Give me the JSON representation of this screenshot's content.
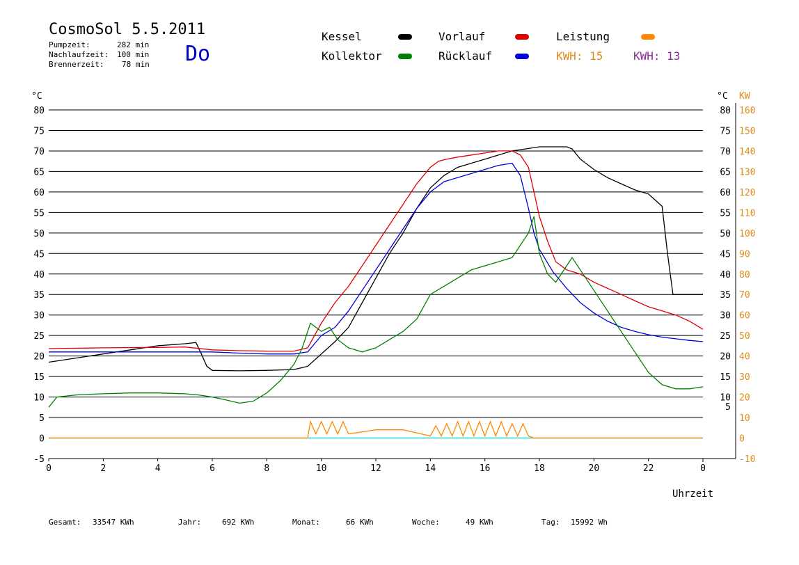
{
  "header": {
    "title": "CosmoSol 5.5.2011",
    "day": "Do",
    "info": [
      {
        "label": "Pumpzeit:",
        "value": "282 min"
      },
      {
        "label": "Nachlaufzeit:",
        "value": "100 min"
      },
      {
        "label": "Brennerzeit:",
        "value": "78 min"
      }
    ]
  },
  "legend": {
    "items": [
      {
        "label": "Kessel",
        "color": "#000000"
      },
      {
        "label": "Vorlauf",
        "color": "#e00000"
      },
      {
        "label": "Leistung",
        "color": "#ff8800"
      },
      {
        "label": "Kollektor",
        "color": "#008000"
      },
      {
        "label": "Rücklauf",
        "color": "#0000dd"
      }
    ],
    "kwh": [
      {
        "label": "KWH:",
        "value": "15",
        "color": "#e08a1a"
      },
      {
        "label": "KWH:",
        "value": "13",
        "color": "#8a2a9a"
      }
    ]
  },
  "footer": {
    "items": [
      {
        "label": "Gesamt:",
        "value": "33547 KWh"
      },
      {
        "label": "Jahr:",
        "value": "692 KWh"
      },
      {
        "label": "Monat:",
        "value": "66 KWh"
      },
      {
        "label": "Woche:",
        "value": "49 KWh"
      },
      {
        "label": "Tag:",
        "value": "15992 Wh"
      }
    ]
  },
  "chart_data": {
    "type": "line",
    "xlabel": "Uhrzeit",
    "ylabel_left": "°C",
    "ylabel_right": "°C",
    "ylabel_right2": "KW",
    "xlim": [
      0,
      24
    ],
    "ylim": [
      -5,
      80
    ],
    "xticks": [
      "0",
      "2",
      "4",
      "6",
      "8",
      "10",
      "12",
      "14",
      "16",
      "18",
      "20",
      "22",
      "0"
    ],
    "yticks_left": [
      "-5",
      "0",
      "5",
      "10",
      "15",
      "20",
      "25",
      "30",
      "35",
      "40",
      "45",
      "50",
      "55",
      "60",
      "65",
      "70",
      "75",
      "80"
    ],
    "yticks_right": [
      "5",
      "10",
      "15",
      "20",
      "25",
      "30",
      "35",
      "40",
      "45",
      "50",
      "55",
      "60",
      "65",
      "70",
      "75",
      "80"
    ],
    "yticks_kw": [
      "-10",
      "0",
      "10",
      "20",
      "30",
      "40",
      "50",
      "60",
      "70",
      "80",
      "90",
      "100",
      "110",
      "120",
      "130",
      "140",
      "150",
      "160"
    ],
    "grid": true,
    "series": [
      {
        "name": "Kessel",
        "color": "#000000",
        "x": [
          0,
          1,
          2,
          3,
          4,
          5,
          5.4,
          5.6,
          5.8,
          6,
          7,
          8,
          9,
          9.5,
          10,
          10.5,
          11,
          11.5,
          12,
          12.5,
          13,
          13.5,
          14,
          14.5,
          15,
          15.5,
          16,
          16.5,
          17,
          17.5,
          18,
          18.5,
          19,
          19.2,
          19.5,
          20,
          20.5,
          21,
          21.5,
          22,
          22.5,
          22.7,
          22.9,
          23.5,
          24
        ],
        "y": [
          18.5,
          19.5,
          20.5,
          21.5,
          22.5,
          23,
          23.3,
          20.5,
          17.5,
          16.5,
          16.4,
          16.5,
          16.7,
          17.5,
          20.5,
          23.5,
          27,
          33,
          39,
          45,
          50,
          56,
          61,
          64,
          66,
          67,
          68,
          69,
          70,
          70.5,
          71,
          71,
          71,
          70.5,
          68,
          65.5,
          63.5,
          62,
          60.5,
          59.5,
          56.5,
          45,
          35,
          35,
          35
        ]
      },
      {
        "name": "Vorlauf",
        "color": "#e00000",
        "x": [
          0,
          2,
          4,
          5,
          6,
          7,
          8,
          9,
          9.5,
          10,
          10.5,
          11,
          11.5,
          12,
          12.5,
          13,
          13.5,
          14,
          14.3,
          14.6,
          15,
          15.5,
          16,
          16.5,
          17,
          17.3,
          17.6,
          17.8,
          18,
          18.3,
          18.6,
          19,
          19.5,
          20,
          20.5,
          21,
          21.5,
          22,
          22.5,
          23,
          23.5,
          24
        ],
        "y": [
          21.8,
          22,
          22.1,
          22.2,
          21.5,
          21.3,
          21.2,
          21.2,
          22,
          28,
          33,
          37,
          42,
          47,
          52,
          57,
          62,
          66,
          67.5,
          68,
          68.5,
          69,
          69.5,
          70,
          70,
          69,
          66,
          60,
          54,
          48,
          43,
          41,
          40,
          38,
          36.5,
          35,
          33.5,
          32,
          31,
          30,
          28.5,
          26.5
        ]
      },
      {
        "name": "Rücklauf",
        "color": "#0000dd",
        "x": [
          0,
          2,
          4,
          6,
          7,
          8,
          9,
          9.5,
          10,
          10.5,
          11,
          11.5,
          12,
          12.5,
          13,
          13.5,
          14,
          14.5,
          15,
          15.5,
          16,
          16.5,
          17,
          17.3,
          17.6,
          17.8,
          18,
          18.5,
          19,
          19.5,
          20,
          20.5,
          21,
          21.5,
          22,
          22.5,
          23,
          23.5,
          24
        ],
        "y": [
          21,
          21,
          21,
          21,
          20.7,
          20.5,
          20.5,
          21,
          25,
          27,
          31,
          36,
          41,
          46,
          51,
          56,
          60,
          62.5,
          63.5,
          64.5,
          65.5,
          66.5,
          67,
          64,
          56,
          50,
          46,
          40.5,
          36.5,
          33,
          30.5,
          28.5,
          27,
          26,
          25.2,
          24.6,
          24.2,
          23.8,
          23.5
        ]
      },
      {
        "name": "Kollektor",
        "color": "#008000",
        "x": [
          0,
          0.3,
          1,
          2,
          3,
          4,
          5,
          5.5,
          6,
          6.5,
          7,
          7.5,
          8,
          8.5,
          9,
          9.3,
          9.6,
          10,
          10.3,
          10.6,
          11,
          11.5,
          12,
          12.5,
          13,
          13.5,
          14,
          14.5,
          15,
          15.5,
          16,
          16.5,
          17,
          17.3,
          17.6,
          17.8,
          18,
          18.3,
          18.6,
          18.9,
          19.2,
          19.6,
          20,
          20.5,
          21,
          21.5,
          22,
          22.5,
          23,
          23.5,
          24
        ],
        "y": [
          7.5,
          10,
          10.5,
          10.8,
          11,
          11,
          10.8,
          10.5,
          10,
          9.3,
          8.5,
          9,
          11,
          14,
          18,
          22,
          28,
          26,
          27,
          24,
          22,
          21,
          22,
          24,
          26,
          29,
          35,
          37,
          39,
          41,
          42,
          43,
          44,
          47,
          50,
          54,
          45,
          40,
          38,
          41,
          44,
          40,
          36,
          31,
          26,
          21,
          16,
          13,
          12,
          12,
          12.5
        ]
      },
      {
        "name": "Leistung",
        "color": "#ff8800",
        "x": [
          0,
          9.5,
          9.6,
          9.8,
          10,
          10.2,
          10.4,
          10.6,
          10.8,
          11,
          11.5,
          12,
          13,
          14,
          14.2,
          14.4,
          14.6,
          14.8,
          15,
          15.2,
          15.4,
          15.6,
          15.8,
          16,
          16.2,
          16.4,
          16.6,
          16.8,
          17,
          17.2,
          17.4,
          17.6,
          17.8,
          18,
          24
        ],
        "y": [
          0,
          0,
          4,
          1,
          4,
          1,
          4,
          1,
          4,
          1,
          1.5,
          2,
          2,
          0.5,
          3,
          0.5,
          3.5,
          0.5,
          4,
          0.5,
          4,
          0.5,
          4,
          0.5,
          4,
          0.5,
          4,
          0.5,
          3.5,
          0.5,
          3.5,
          0.5,
          0,
          0,
          0
        ]
      }
    ]
  }
}
